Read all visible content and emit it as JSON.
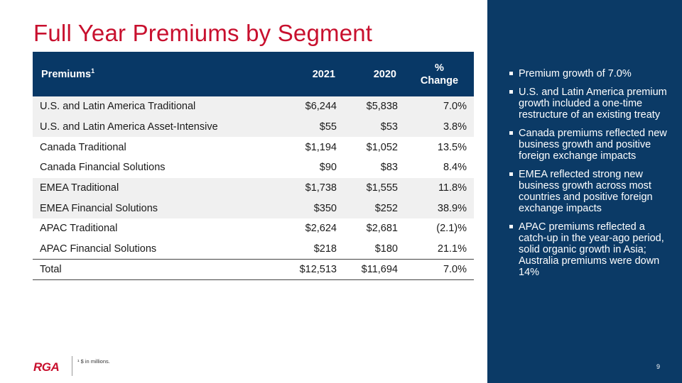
{
  "title": "Full Year Premiums by Segment",
  "table": {
    "headers": {
      "label": "Premiums",
      "label_sup": "1",
      "y2021": "2021",
      "y2020": "2020",
      "pct_line1": "%",
      "pct_line2": "Change"
    },
    "rows": [
      {
        "label": "U.S. and Latin America Traditional",
        "v2021": "$6,244",
        "v2020": "$5,838",
        "pct": "7.0%"
      },
      {
        "label": "U.S. and Latin America Asset-Intensive",
        "v2021": "$55",
        "v2020": "$53",
        "pct": "3.8%"
      },
      {
        "label": "Canada Traditional",
        "v2021": "$1,194",
        "v2020": "$1,052",
        "pct": "13.5%"
      },
      {
        "label": "Canada Financial Solutions",
        "v2021": "$90",
        "v2020": "$83",
        "pct": "8.4%"
      },
      {
        "label": "EMEA Traditional",
        "v2021": "$1,738",
        "v2020": "$1,555",
        "pct": "11.8%"
      },
      {
        "label": "EMEA Financial Solutions",
        "v2021": "$350",
        "v2020": "$252",
        "pct": "38.9%"
      },
      {
        "label": "APAC Traditional",
        "v2021": "$2,624",
        "v2020": "$2,681",
        "pct": "(2.1)%"
      },
      {
        "label": "APAC Financial Solutions",
        "v2021": "$218",
        "v2020": "$180",
        "pct": "21.1%"
      }
    ],
    "total": {
      "label": "Total",
      "v2021": "$12,513",
      "v2020": "$11,694",
      "pct": "7.0%"
    }
  },
  "bullets": [
    "Premium growth of 7.0%",
    "U.S. and Latin America premium growth included a one-time restructure of an existing treaty",
    "Canada premiums reflected new business growth and positive foreign exchange impacts",
    "EMEA reflected strong new business growth across most countries and positive foreign exchange impacts",
    "APAC premiums reflected a catch-up in the year-ago period, solid organic growth in Asia; Australia premiums were down 14%"
  ],
  "footnote": "¹ $ in millions.",
  "logo": "RGA",
  "page_number": "9",
  "colors": {
    "accent_red": "#c8102e",
    "navy": "#0b3a66",
    "header_navy": "#083866",
    "row_shade": "#f0f0f0"
  }
}
